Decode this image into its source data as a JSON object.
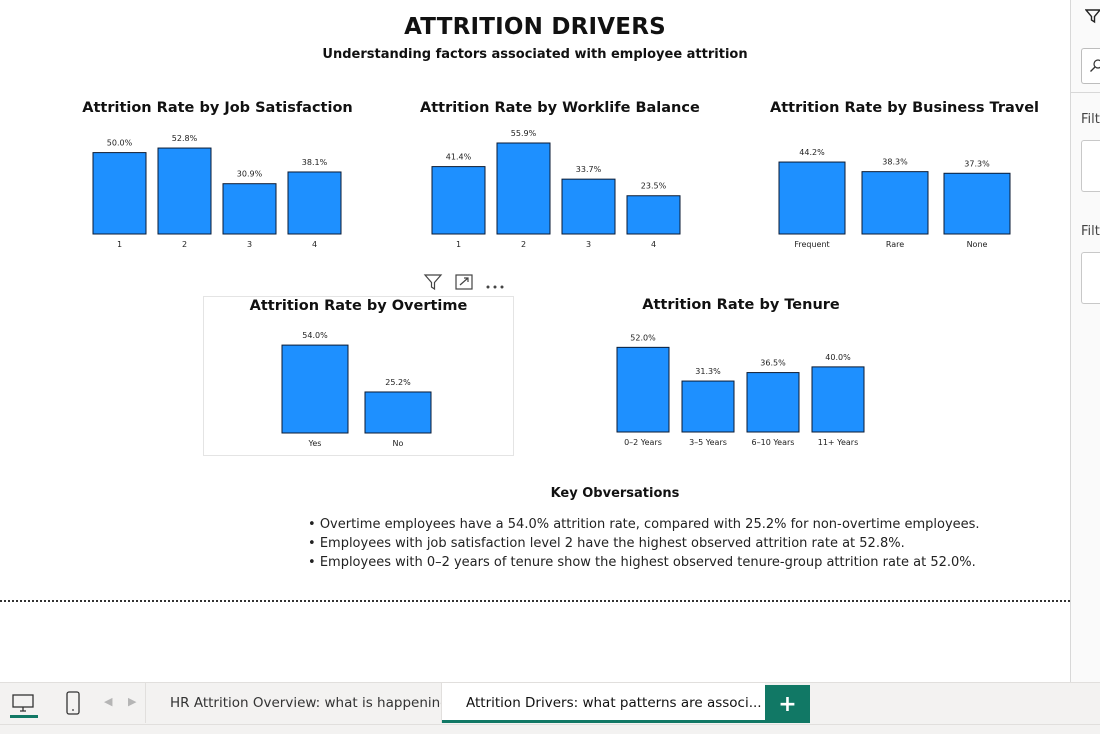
{
  "report": {
    "title": "ATTRITION DRIVERS",
    "subtitle": "Understanding factors associated with employee attrition"
  },
  "chart_data": [
    {
      "id": "job_satisfaction",
      "type": "bar",
      "title": "Attrition Rate by Job Satisfaction",
      "categories": [
        "1",
        "2",
        "3",
        "4"
      ],
      "values": [
        50.0,
        52.8,
        30.9,
        38.1
      ],
      "labels": [
        "50.0%",
        "52.8%",
        "30.9%",
        "38.1%"
      ],
      "ylim": [
        0,
        55.9
      ],
      "grid": false
    },
    {
      "id": "worklife_balance",
      "type": "bar",
      "title": "Attrition Rate by Worklife Balance",
      "categories": [
        "1",
        "2",
        "3",
        "4"
      ],
      "values": [
        41.4,
        55.9,
        33.7,
        23.5
      ],
      "labels": [
        "41.4%",
        "55.9%",
        "33.7%",
        "23.5%"
      ],
      "ylim": [
        0,
        55.9
      ],
      "grid": false
    },
    {
      "id": "business_travel",
      "type": "bar",
      "title": "Attrition Rate by Business Travel",
      "categories": [
        "Frequent",
        "Rare",
        "None"
      ],
      "values": [
        44.2,
        38.3,
        37.3
      ],
      "labels": [
        "44.2%",
        "38.3%",
        "37.3%"
      ],
      "ylim": [
        0,
        55.9
      ],
      "grid": false
    },
    {
      "id": "overtime",
      "type": "bar",
      "title": "Attrition Rate by Overtime",
      "categories": [
        "Yes",
        "No"
      ],
      "values": [
        54.0,
        25.2
      ],
      "labels": [
        "54.0%",
        "25.2%"
      ],
      "ylim": [
        0,
        55.9
      ],
      "grid": false
    },
    {
      "id": "tenure",
      "type": "bar",
      "title": "Attrition Rate by Tenure",
      "categories": [
        "0–2 Years",
        "3–5 Years",
        "6–10 Years",
        "11+ Years"
      ],
      "values": [
        52.0,
        31.3,
        36.5,
        40.0
      ],
      "labels": [
        "52.0%",
        "31.3%",
        "36.5%",
        "40.0%"
      ],
      "ylim": [
        0,
        55.9
      ],
      "grid": false
    }
  ],
  "observations": {
    "title": "Key Obversations",
    "items": [
      "Overtime employees have a 54.0% attrition rate, compared with 25.2% for non-overtime employees.",
      "Employees with job satisfaction level 2 have the highest observed attrition rate at 52.8%.",
      "Employees with 0–2 years of tenure show the highest observed tenure-group attrition rate at 52.0%."
    ]
  },
  "visual_header": {
    "icons": [
      "filter-icon",
      "focus-mode-icon",
      "more-options-icon"
    ]
  },
  "filter_pane": {
    "labels": [
      "Filt",
      "Filt"
    ]
  },
  "bottom_bar": {
    "tabs": [
      {
        "label": "HR Attrition Overview: what is happening",
        "active": false
      },
      {
        "label": "Attrition Drivers: what patterns are associ...",
        "active": true
      }
    ],
    "add_label": "+"
  },
  "colors": {
    "bar": "#1e90ff",
    "bar_outline": "#0a1a33",
    "accent": "#117865"
  }
}
